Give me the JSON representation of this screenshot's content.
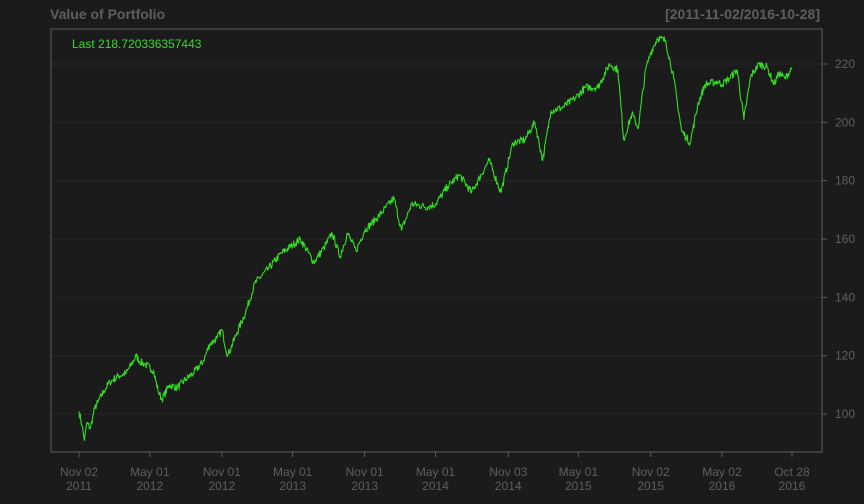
{
  "header": {
    "title": "Value of Portfolio",
    "date_range": "[2011-11-02/2016-10-28]"
  },
  "colors": {
    "background": "#1b1b1b",
    "axis": "#5e5e5e",
    "grid": "#272727",
    "series": "#33dd22"
  },
  "chart_data": {
    "type": "line",
    "title": "Value of Portfolio",
    "subtitle": "[2011-11-02/2016-10-28]",
    "annotation": "Last 218.720336357443",
    "ylim": [
      87,
      232
    ],
    "y_ticks": [
      100,
      120,
      140,
      160,
      180,
      200,
      220
    ],
    "y_axis_side": "right",
    "grid": true,
    "x_ticks": [
      {
        "date": "2011-11-02",
        "line1": "Nov 02",
        "line2": "2011"
      },
      {
        "date": "2012-05-01",
        "line1": "May 01",
        "line2": "2012"
      },
      {
        "date": "2012-11-01",
        "line1": "Nov 01",
        "line2": "2012"
      },
      {
        "date": "2013-05-01",
        "line1": "May 01",
        "line2": "2013"
      },
      {
        "date": "2013-11-01",
        "line1": "Nov 01",
        "line2": "2013"
      },
      {
        "date": "2014-05-01",
        "line1": "May 01",
        "line2": "2014"
      },
      {
        "date": "2014-11-03",
        "line1": "Nov 03",
        "line2": "2014"
      },
      {
        "date": "2015-05-01",
        "line1": "May 01",
        "line2": "2015"
      },
      {
        "date": "2015-11-02",
        "line1": "Nov 02",
        "line2": "2015"
      },
      {
        "date": "2016-05-02",
        "line1": "May 02",
        "line2": "2016"
      },
      {
        "date": "2016-10-28",
        "line1": "Oct 28",
        "line2": "2016"
      }
    ],
    "series": [
      {
        "points": [
          [
            "2011-11-02",
            101
          ],
          [
            "2011-11-10",
            96
          ],
          [
            "2011-11-16",
            91
          ],
          [
            "2011-11-22",
            97
          ],
          [
            "2011-12-01",
            95
          ],
          [
            "2011-12-12",
            102
          ],
          [
            "2011-12-20",
            104
          ],
          [
            "2012-01-05",
            108
          ],
          [
            "2012-01-20",
            111
          ],
          [
            "2012-02-10",
            113
          ],
          [
            "2012-03-01",
            114
          ],
          [
            "2012-03-15",
            117
          ],
          [
            "2012-03-27",
            120
          ],
          [
            "2012-04-05",
            118
          ],
          [
            "2012-04-20",
            117
          ],
          [
            "2012-05-10",
            115
          ],
          [
            "2012-05-22",
            108
          ],
          [
            "2012-06-01",
            105
          ],
          [
            "2012-06-20",
            110
          ],
          [
            "2012-07-10",
            109
          ],
          [
            "2012-08-01",
            112
          ],
          [
            "2012-08-20",
            114
          ],
          [
            "2012-09-14",
            118
          ],
          [
            "2012-10-01",
            124
          ],
          [
            "2012-10-20",
            126
          ],
          [
            "2012-11-01",
            129
          ],
          [
            "2012-11-16",
            120
          ],
          [
            "2012-12-10",
            128
          ],
          [
            "2013-01-01",
            135
          ],
          [
            "2013-01-25",
            145
          ],
          [
            "2013-03-01",
            150
          ],
          [
            "2013-04-01",
            155
          ],
          [
            "2013-05-01",
            158
          ],
          [
            "2013-05-21",
            160
          ],
          [
            "2013-06-24",
            152
          ],
          [
            "2013-07-20",
            157
          ],
          [
            "2013-08-10",
            162
          ],
          [
            "2013-08-30",
            154
          ],
          [
            "2013-09-18",
            162
          ],
          [
            "2013-10-10",
            156
          ],
          [
            "2013-11-01",
            163
          ],
          [
            "2013-12-01",
            167
          ],
          [
            "2014-01-15",
            174
          ],
          [
            "2014-02-03",
            163
          ],
          [
            "2014-03-01",
            172
          ],
          [
            "2014-04-11",
            171
          ],
          [
            "2014-05-01",
            172
          ],
          [
            "2014-06-01",
            178
          ],
          [
            "2014-07-01",
            182
          ],
          [
            "2014-08-01",
            176
          ],
          [
            "2014-09-15",
            187
          ],
          [
            "2014-10-15",
            176
          ],
          [
            "2014-11-15",
            193
          ],
          [
            "2014-12-15",
            194
          ],
          [
            "2015-01-10",
            200
          ],
          [
            "2015-01-30",
            187
          ],
          [
            "2015-02-20",
            204
          ],
          [
            "2015-03-20",
            205
          ],
          [
            "2015-04-20",
            208
          ],
          [
            "2015-05-20",
            212
          ],
          [
            "2015-06-20",
            212
          ],
          [
            "2015-07-20",
            220
          ],
          [
            "2015-08-10",
            218
          ],
          [
            "2015-08-25",
            194
          ],
          [
            "2015-09-15",
            203
          ],
          [
            "2015-10-01",
            198
          ],
          [
            "2015-10-20",
            218
          ],
          [
            "2015-11-02",
            224
          ],
          [
            "2015-11-20",
            229
          ],
          [
            "2015-12-10",
            228
          ],
          [
            "2015-12-31",
            215
          ],
          [
            "2016-01-20",
            197
          ],
          [
            "2016-02-11",
            193
          ],
          [
            "2016-03-01",
            206
          ],
          [
            "2016-03-20",
            213
          ],
          [
            "2016-04-20",
            214
          ],
          [
            "2016-05-02",
            213
          ],
          [
            "2016-05-20",
            215
          ],
          [
            "2016-06-10",
            218
          ],
          [
            "2016-06-27",
            201
          ],
          [
            "2016-07-15",
            216
          ],
          [
            "2016-08-05",
            220
          ],
          [
            "2016-08-25",
            219
          ],
          [
            "2016-09-12",
            213
          ],
          [
            "2016-09-25",
            217
          ],
          [
            "2016-10-10",
            215
          ],
          [
            "2016-10-28",
            218.72
          ]
        ]
      }
    ]
  }
}
